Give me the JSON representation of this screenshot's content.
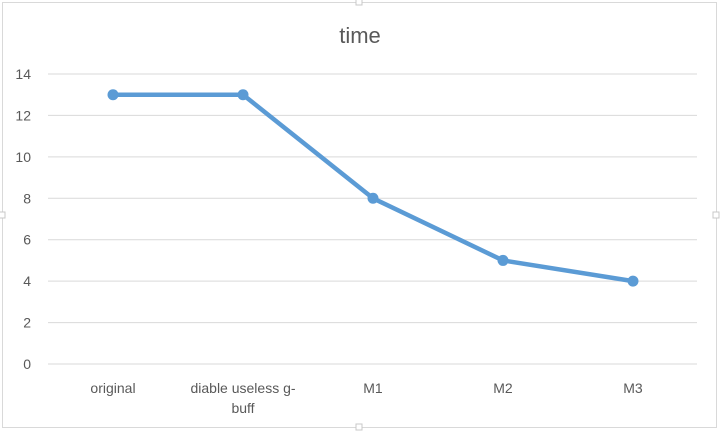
{
  "chart_data": {
    "type": "line",
    "title": "time",
    "xlabel": "",
    "ylabel": "",
    "categories": [
      "original",
      "diable useless g-buff",
      "M1",
      "M2",
      "M3"
    ],
    "category_lines": [
      [
        "original"
      ],
      [
        "diable useless g-",
        "buff"
      ],
      [
        "M1"
      ],
      [
        "M2"
      ],
      [
        "M3"
      ]
    ],
    "series": [
      {
        "values": [
          13,
          13,
          8,
          5,
          4
        ]
      }
    ],
    "ylim": [
      0,
      14
    ],
    "y_ticks": [
      "0",
      "2",
      "4",
      "6",
      "8",
      "10",
      "12",
      "14"
    ],
    "grid": true,
    "legend": "none"
  },
  "colors": {
    "series": "#5b9bd5",
    "grid": "#d9d9d9",
    "text": "#595959"
  }
}
